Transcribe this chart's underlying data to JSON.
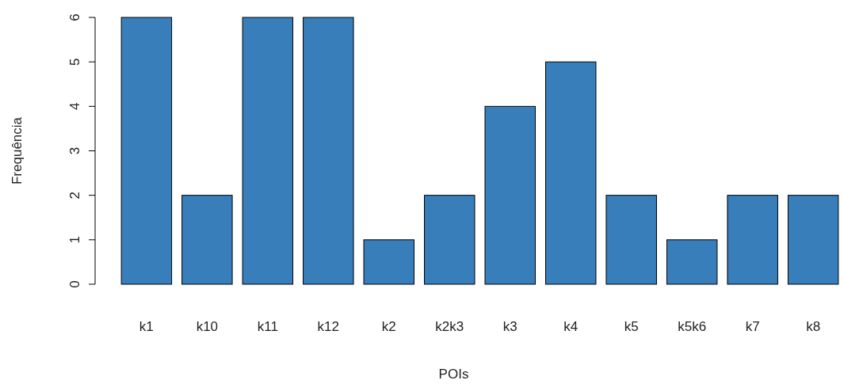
{
  "chart_data": {
    "type": "bar",
    "xlabel": "POIs",
    "ylabel": "Frequência",
    "categories": [
      "k1",
      "k10",
      "k11",
      "k12",
      "k2",
      "k2k3",
      "k3",
      "k4",
      "k5",
      "k5k6",
      "k7",
      "k8"
    ],
    "values": [
      6,
      2,
      6,
      6,
      1,
      2,
      4,
      5,
      2,
      1,
      2,
      2
    ],
    "color": "#387ebb",
    "ylim": [
      0,
      6
    ],
    "yticks": [
      0,
      1,
      2,
      3,
      4,
      5,
      6
    ],
    "grid": false
  }
}
